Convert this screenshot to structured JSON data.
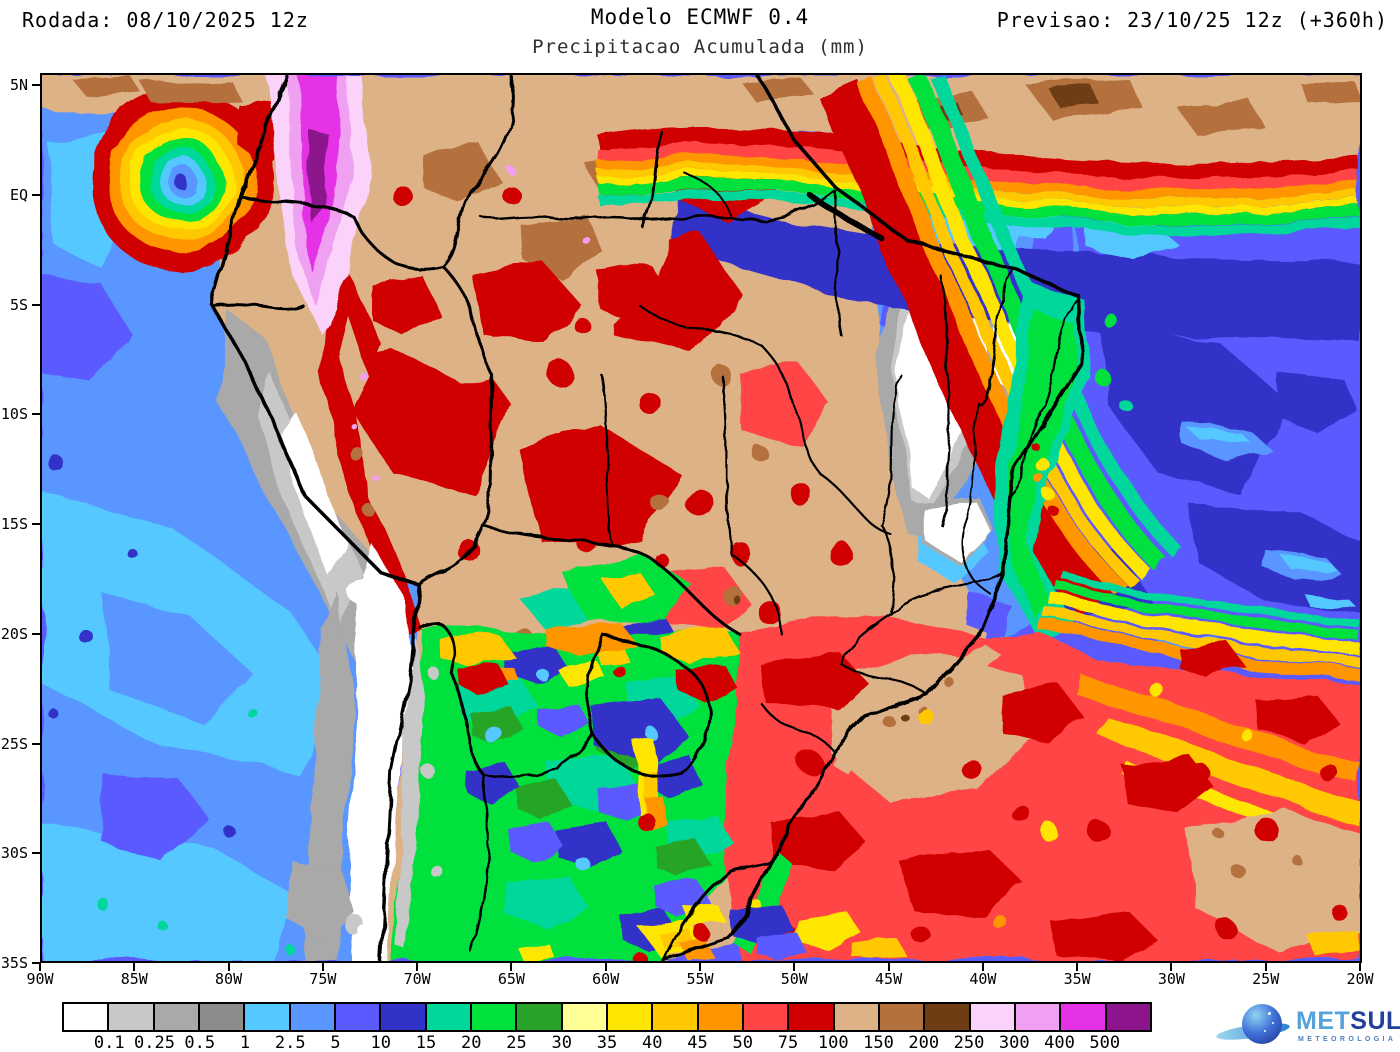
{
  "header": {
    "run_label": "Rodada: 08/10/2025 12z",
    "model_title": "Modelo ECMWF 0.4",
    "subtitle": "Precipitacao Acumulada (mm)",
    "forecast_label": "Previsao: 23/10/25 12z (+360h)"
  },
  "map": {
    "y_axis_labels": [
      "5N",
      "EQ",
      "5S",
      "10S",
      "15S",
      "20S",
      "25S",
      "30S",
      "35S"
    ],
    "x_axis_labels": [
      "90W",
      "85W",
      "80W",
      "75W",
      "70W",
      "65W",
      "60W",
      "55W",
      "50W",
      "45W",
      "40W",
      "35W",
      "30W",
      "25W",
      "20W"
    ]
  },
  "legend": {
    "values": [
      "0.1",
      "0.25",
      "0.5",
      "1",
      "2.5",
      "5",
      "10",
      "15",
      "20",
      "25",
      "30",
      "35",
      "40",
      "45",
      "50",
      "75",
      "100",
      "150",
      "200",
      "250",
      "300",
      "400",
      "500"
    ],
    "colors": [
      "#FFFFFF",
      "#C8C8C8",
      "#A9A9A9",
      "#8C8C8C",
      "#55C8FF",
      "#5A96FF",
      "#5A5AFF",
      "#3232C8",
      "#00D79B",
      "#00E13C",
      "#28A428",
      "#FFFF96",
      "#FFE600",
      "#FFC800",
      "#FF9600",
      "#FF4545",
      "#D10000",
      "#DEB287",
      "#B4713C",
      "#6E3D14",
      "#FAD2FA",
      "#F0A0F0",
      "#E632E6",
      "#8C148C"
    ]
  },
  "logo": {
    "brand_first": "MET",
    "brand_second": "SUL",
    "tagline": "METEOROLOGIA"
  }
}
